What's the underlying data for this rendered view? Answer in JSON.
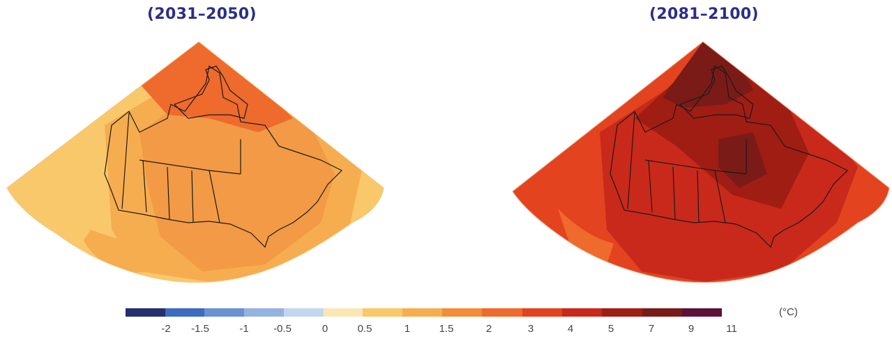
{
  "panels": [
    {
      "title": "(2031–2050)"
    },
    {
      "title": "(2081–2100)"
    }
  ],
  "legend": {
    "unit": "(°C)",
    "ticks": [
      "-2",
      "-1.5",
      "-1",
      "-0.5",
      "0",
      "0.5",
      "1",
      "1.5",
      "2",
      "3",
      "4",
      "5",
      "7",
      "9",
      "11"
    ],
    "colors": [
      "#232f6e",
      "#3c6bbf",
      "#6a91d2",
      "#95b3df",
      "#c4d6ef",
      "#fbe7b4",
      "#f9c86a",
      "#f6ad4f",
      "#f28c3b",
      "#ee6a2d",
      "#e3431f",
      "#c9291a",
      "#a01d14",
      "#7a1b18",
      "#5d1235"
    ]
  }
}
